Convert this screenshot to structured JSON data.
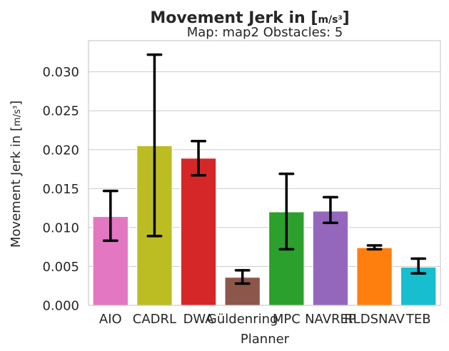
{
  "chart_data": {
    "type": "bar",
    "title_text": "Movement Jerk in [",
    "title_unit": "m/s³",
    "title_close": "]",
    "subtitle": "Map: map2 Obstacles: 5",
    "xlabel": "Planner",
    "ylabel_text": "Movement Jerk in [",
    "ylabel_unit": "m/s³",
    "ylabel_close": "]",
    "ylim": [
      0,
      0.034
    ],
    "yticks": [
      "0.000",
      "0.005",
      "0.010",
      "0.015",
      "0.020",
      "0.025",
      "0.030"
    ],
    "grid": true,
    "categories": [
      "AIO",
      "CADRL",
      "DWA",
      "Güldenring",
      "MPC",
      "NAVREP",
      "RLDSNAV",
      "TEB"
    ],
    "values": [
      0.0114,
      0.0205,
      0.0189,
      0.0036,
      0.012,
      0.0121,
      0.0074,
      0.0049
    ],
    "err_low": [
      0.0083,
      0.0089,
      0.0167,
      0.0028,
      0.0072,
      0.0106,
      0.0072,
      0.0041
    ],
    "err_high": [
      0.0147,
      0.0322,
      0.0211,
      0.0045,
      0.0169,
      0.0139,
      0.0077,
      0.006
    ],
    "colors": [
      "#e377c2",
      "#bcbd22",
      "#d62728",
      "#8c564b",
      "#2ca02c",
      "#9467bd",
      "#ff7f0e",
      "#17becf"
    ]
  }
}
